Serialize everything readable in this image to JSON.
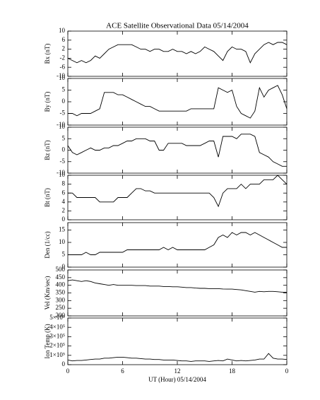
{
  "chart_data": [
    {
      "type": "line",
      "title": "ACE Satellite Observational Data   05/14/2004",
      "ylabel": "Bx (nT)",
      "ylim": [
        -10,
        10
      ],
      "yticks": [
        -10,
        -6,
        -2,
        2,
        6,
        10
      ],
      "x": [
        0,
        0.5,
        1,
        1.5,
        2,
        2.5,
        3,
        3.5,
        4,
        4.5,
        5,
        5.5,
        6,
        6.5,
        7,
        7.5,
        8,
        8.5,
        9,
        9.5,
        10,
        10.5,
        11,
        11.5,
        12,
        12.5,
        13,
        13.5,
        14,
        14.5,
        15,
        15.5,
        16,
        16.5,
        17,
        17.5,
        18,
        18.5,
        19,
        19.5,
        20,
        20.5,
        21,
        21.5,
        22,
        22.5,
        23,
        23.5,
        24
      ],
      "series": [
        {
          "color": "#000000",
          "values": [
            -2,
            -3,
            -4,
            -3,
            -4,
            -3,
            -1,
            -2,
            0,
            2,
            3,
            4,
            4,
            4,
            4,
            3,
            2,
            2,
            1,
            2,
            2,
            1,
            1,
            2,
            1,
            1,
            0,
            1,
            0,
            1,
            3,
            2,
            1,
            -1,
            -3,
            1,
            3,
            2,
            2,
            1,
            -4,
            0,
            2,
            4,
            5,
            4,
            5,
            5,
            4
          ]
        }
      ]
    },
    {
      "type": "line",
      "ylabel": "By (nT)",
      "ylim": [
        -10,
        10
      ],
      "yticks": [
        -10,
        -5,
        0,
        5,
        10
      ],
      "x": [
        0,
        0.5,
        1,
        1.5,
        2,
        2.5,
        3,
        3.5,
        4,
        4.5,
        5,
        5.5,
        6,
        6.5,
        7,
        7.5,
        8,
        8.5,
        9,
        9.5,
        10,
        10.5,
        11,
        11.5,
        12,
        12.5,
        13,
        13.5,
        14,
        14.5,
        15,
        15.5,
        16,
        16.5,
        17,
        17.5,
        18,
        18.5,
        19,
        19.5,
        20,
        20.5,
        21,
        21.5,
        22,
        22.5,
        23,
        23.5,
        24
      ],
      "series": [
        {
          "color": "#000000",
          "values": [
            -5,
            -5,
            -6,
            -5,
            -5,
            -5,
            -4,
            -3,
            4,
            4,
            4,
            3,
            3,
            2,
            1,
            0,
            -1,
            -2,
            -2,
            -3,
            -4,
            -4,
            -4,
            -4,
            -4,
            -4,
            -4,
            -3,
            -3,
            -3,
            -3,
            -3,
            -3,
            6,
            5,
            4,
            5,
            -2,
            -5,
            -6,
            -7,
            -4,
            6,
            2,
            5,
            6,
            7,
            3,
            -3
          ]
        }
      ]
    },
    {
      "type": "line",
      "ylabel": "Bz (nT)",
      "ylim": [
        -10,
        10
      ],
      "yticks": [
        -10,
        -5,
        0,
        5,
        10
      ],
      "x": [
        0,
        0.5,
        1,
        1.5,
        2,
        2.5,
        3,
        3.5,
        4,
        4.5,
        5,
        5.5,
        6,
        6.5,
        7,
        7.5,
        8,
        8.5,
        9,
        9.5,
        10,
        10.5,
        11,
        11.5,
        12,
        12.5,
        13,
        13.5,
        14,
        14.5,
        15,
        15.5,
        16,
        16.5,
        17,
        17.5,
        18,
        18.5,
        19,
        19.5,
        20,
        20.5,
        21,
        21.5,
        22,
        22.5,
        23,
        23.5,
        24
      ],
      "series": [
        {
          "color": "#000000",
          "values": [
            2,
            -1,
            -2,
            -1,
            0,
            1,
            0,
            0,
            1,
            1,
            2,
            2,
            3,
            4,
            4,
            5,
            5,
            5,
            4,
            4,
            0,
            0,
            3,
            3,
            3,
            3,
            2,
            2,
            2,
            2,
            3,
            4,
            4,
            -3,
            6,
            6,
            6,
            5,
            7,
            7,
            7,
            6,
            -1,
            -2,
            -3,
            -5,
            -6,
            -7,
            -7
          ]
        }
      ]
    },
    {
      "type": "line",
      "ylabel": "Bt (nT)",
      "ylim": [
        0,
        10
      ],
      "yticks": [
        0,
        2,
        4,
        6,
        8,
        10
      ],
      "x": [
        0,
        0.5,
        1,
        1.5,
        2,
        2.5,
        3,
        3.5,
        4,
        4.5,
        5,
        5.5,
        6,
        6.5,
        7,
        7.5,
        8,
        8.5,
        9,
        9.5,
        10,
        10.5,
        11,
        11.5,
        12,
        12.5,
        13,
        13.5,
        14,
        14.5,
        15,
        15.5,
        16,
        16.5,
        17,
        17.5,
        18,
        18.5,
        19,
        19.5,
        20,
        20.5,
        21,
        21.5,
        22,
        22.5,
        23,
        23.5,
        24
      ],
      "series": [
        {
          "color": "#000000",
          "values": [
            6,
            6,
            5,
            5,
            5,
            5,
            5,
            4,
            4,
            4,
            4,
            5,
            5,
            5,
            6,
            7,
            7,
            6.5,
            6.5,
            6,
            6,
            6,
            6,
            6,
            6,
            6,
            6,
            6,
            6,
            6,
            6,
            6,
            5,
            3,
            6,
            7,
            7,
            7,
            8,
            7,
            8,
            8,
            8,
            9,
            9,
            9,
            10,
            9,
            8
          ]
        }
      ]
    },
    {
      "type": "line",
      "ylabel": "Den (1/cc)",
      "ylim": [
        0,
        18
      ],
      "yticks": [
        0,
        5,
        10,
        15
      ],
      "x": [
        0,
        0.5,
        1,
        1.5,
        2,
        2.5,
        3,
        3.5,
        4,
        4.5,
        5,
        5.5,
        6,
        6.5,
        7,
        7.5,
        8,
        8.5,
        9,
        9.5,
        10,
        10.5,
        11,
        11.5,
        12,
        12.5,
        13,
        13.5,
        14,
        14.5,
        15,
        15.5,
        16,
        16.5,
        17,
        17.5,
        18,
        18.5,
        19,
        19.5,
        20,
        20.5,
        21,
        21.5,
        22,
        22.5,
        23,
        23.5,
        24
      ],
      "series": [
        {
          "color": "#000000",
          "values": [
            5,
            5,
            5,
            5,
            6,
            5,
            5,
            6,
            6,
            6,
            6,
            6,
            6,
            7,
            7,
            7,
            7,
            7,
            7,
            7,
            7,
            8,
            7,
            8,
            7,
            7,
            7,
            7,
            7,
            7,
            7,
            8,
            9,
            12,
            13,
            12,
            14,
            13,
            14,
            14,
            13,
            14,
            13,
            12,
            11,
            10,
            9,
            8,
            8
          ]
        }
      ]
    },
    {
      "type": "line",
      "ylabel": "Vel (Km/sec)",
      "ylim": [
        200,
        500
      ],
      "yticks": [
        200,
        250,
        300,
        350,
        400,
        450,
        500
      ],
      "x": [
        0,
        0.5,
        1,
        1.5,
        2,
        2.5,
        3,
        3.5,
        4,
        4.5,
        5,
        5.5,
        6,
        6.5,
        7,
        7.5,
        8,
        8.5,
        9,
        9.5,
        10,
        10.5,
        11,
        11.5,
        12,
        12.5,
        13,
        13.5,
        14,
        14.5,
        15,
        15.5,
        16,
        16.5,
        17,
        17.5,
        18,
        18.5,
        19,
        19.5,
        20,
        20.5,
        21,
        21.5,
        22,
        22.5,
        23,
        23.5,
        24
      ],
      "series": [
        {
          "color": "#000000",
          "values": [
            430,
            435,
            430,
            425,
            430,
            425,
            415,
            410,
            405,
            400,
            405,
            400,
            400,
            400,
            400,
            398,
            398,
            398,
            395,
            395,
            395,
            392,
            392,
            390,
            390,
            388,
            385,
            385,
            382,
            380,
            380,
            378,
            378,
            378,
            376,
            375,
            375,
            372,
            370,
            365,
            360,
            355,
            360,
            358,
            360,
            360,
            358,
            355,
            355
          ]
        }
      ]
    },
    {
      "type": "line",
      "ylabel": "Ion Temp (K)",
      "xlabel": "UT (Hour)   05/14/2004",
      "ylim": [
        0,
        500000
      ],
      "yticks": [
        0,
        {
          "value": 100000,
          "label": "1×10⁵"
        },
        {
          "value": 200000,
          "label": "2×10⁵"
        },
        {
          "value": 300000,
          "label": "3×10⁵"
        },
        {
          "value": 400000,
          "label": "4×10⁵"
        },
        {
          "value": 500000,
          "label": "5×10⁵"
        }
      ],
      "xlim": [
        0,
        24
      ],
      "xticks": [
        0,
        6,
        12,
        18,
        {
          "value": 24,
          "label": "0"
        }
      ],
      "x": [
        0,
        0.5,
        1,
        1.5,
        2,
        2.5,
        3,
        3.5,
        4,
        4.5,
        5,
        5.5,
        6,
        6.5,
        7,
        7.5,
        8,
        8.5,
        9,
        9.5,
        10,
        10.5,
        11,
        11.5,
        12,
        12.5,
        13,
        13.5,
        14,
        14.5,
        15,
        15.5,
        16,
        16.5,
        17,
        17.5,
        18,
        18.5,
        19,
        19.5,
        20,
        20.5,
        21,
        21.5,
        22,
        22.5,
        23,
        23.5,
        24
      ],
      "series": [
        {
          "color": "#000000",
          "values": [
            50000,
            40000,
            45000,
            45000,
            50000,
            55000,
            60000,
            60000,
            70000,
            70000,
            75000,
            80000,
            80000,
            75000,
            70000,
            70000,
            65000,
            60000,
            60000,
            55000,
            55000,
            50000,
            50000,
            50000,
            45000,
            40000,
            40000,
            35000,
            40000,
            40000,
            40000,
            35000,
            40000,
            45000,
            40000,
            60000,
            50000,
            40000,
            45000,
            40000,
            45000,
            50000,
            60000,
            60000,
            120000,
            70000,
            60000,
            60000,
            55000
          ]
        }
      ]
    }
  ]
}
